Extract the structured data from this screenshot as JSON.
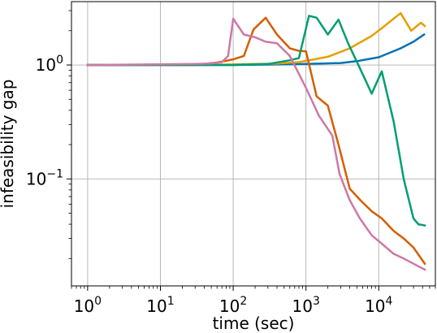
{
  "chart_data": {
    "type": "line",
    "xlabel": "time (sec)",
    "ylabel": "infeasibility gap",
    "xscale": "log",
    "yscale": "log",
    "xlim": [
      0.6,
      60000
    ],
    "ylim": [
      0.0115,
      3.6
    ],
    "grid": true,
    "legend": "none",
    "xticks": [
      {
        "value": 1,
        "base": "10",
        "exp": "0"
      },
      {
        "value": 10,
        "base": "10",
        "exp": "1"
      },
      {
        "value": 100,
        "base": "10",
        "exp": "2"
      },
      {
        "value": 1000,
        "base": "10",
        "exp": "3"
      },
      {
        "value": 10000,
        "base": "10",
        "exp": "4"
      }
    ],
    "yticks": [
      {
        "value": 1,
        "base": "10",
        "exp": "0"
      },
      {
        "value": 0.1,
        "base": "10",
        "exp": "−1"
      }
    ],
    "series": [
      {
        "color": "#0072b2",
        "points": [
          [
            1,
            1.0
          ],
          [
            30,
            1.0
          ],
          [
            100,
            1.0
          ],
          [
            400,
            1.01
          ],
          [
            1000,
            1.02
          ],
          [
            3000,
            1.04
          ],
          [
            5000,
            1.08
          ],
          [
            10000,
            1.17
          ],
          [
            20000,
            1.4
          ],
          [
            30000,
            1.6
          ],
          [
            42000,
            1.85
          ]
        ]
      },
      {
        "color": "#e69f00",
        "points": [
          [
            1,
            1.0
          ],
          [
            30,
            1.0
          ],
          [
            100,
            1.01
          ],
          [
            400,
            1.03
          ],
          [
            800,
            1.06
          ],
          [
            2000,
            1.18
          ],
          [
            4000,
            1.4
          ],
          [
            8000,
            1.8
          ],
          [
            12000,
            2.2
          ],
          [
            20000,
            2.85
          ],
          [
            28000,
            2.0
          ],
          [
            38000,
            2.35
          ],
          [
            43000,
            2.2
          ]
        ]
      },
      {
        "color": "#d55e00",
        "points": [
          [
            1,
            1.0
          ],
          [
            30,
            1.0
          ],
          [
            60,
            1.05
          ],
          [
            100,
            1.12
          ],
          [
            140,
            1.2
          ],
          [
            190,
            2.05
          ],
          [
            280,
            2.6
          ],
          [
            400,
            1.85
          ],
          [
            600,
            1.4
          ],
          [
            800,
            1.33
          ],
          [
            1000,
            1.32
          ],
          [
            1400,
            0.53
          ],
          [
            2000,
            0.44
          ],
          [
            2800,
            0.2
          ],
          [
            4000,
            0.082
          ],
          [
            5600,
            0.065
          ],
          [
            8000,
            0.052
          ],
          [
            11000,
            0.045
          ],
          [
            16000,
            0.035
          ],
          [
            22000,
            0.03
          ],
          [
            30000,
            0.025
          ],
          [
            43000,
            0.018
          ]
        ]
      },
      {
        "color": "#009e73",
        "points": [
          [
            1,
            1.0
          ],
          [
            30,
            1.0
          ],
          [
            100,
            1.0
          ],
          [
            300,
            1.02
          ],
          [
            600,
            1.1
          ],
          [
            800,
            1.15
          ],
          [
            1100,
            2.7
          ],
          [
            1400,
            2.6
          ],
          [
            2000,
            1.85
          ],
          [
            2800,
            2.5
          ],
          [
            3800,
            1.55
          ],
          [
            5500,
            0.94
          ],
          [
            8000,
            0.56
          ],
          [
            11000,
            0.88
          ],
          [
            16000,
            0.32
          ],
          [
            22000,
            0.1
          ],
          [
            30000,
            0.045
          ],
          [
            35000,
            0.04
          ],
          [
            43000,
            0.039
          ]
        ]
      },
      {
        "color": "#cc79a7",
        "points": [
          [
            1,
            1.0
          ],
          [
            30,
            1.02
          ],
          [
            50,
            1.03
          ],
          [
            70,
            1.06
          ],
          [
            85,
            1.2
          ],
          [
            100,
            2.55
          ],
          [
            140,
            1.85
          ],
          [
            200,
            1.75
          ],
          [
            280,
            1.6
          ],
          [
            400,
            1.55
          ],
          [
            600,
            1.2
          ],
          [
            1000,
            0.63
          ],
          [
            1500,
            0.36
          ],
          [
            2300,
            0.24
          ],
          [
            2900,
            0.11
          ],
          [
            4000,
            0.065
          ],
          [
            5500,
            0.045
          ],
          [
            8000,
            0.032
          ],
          [
            11000,
            0.027
          ],
          [
            16000,
            0.022
          ],
          [
            22000,
            0.02
          ],
          [
            30000,
            0.018
          ],
          [
            43000,
            0.016
          ]
        ]
      }
    ]
  }
}
